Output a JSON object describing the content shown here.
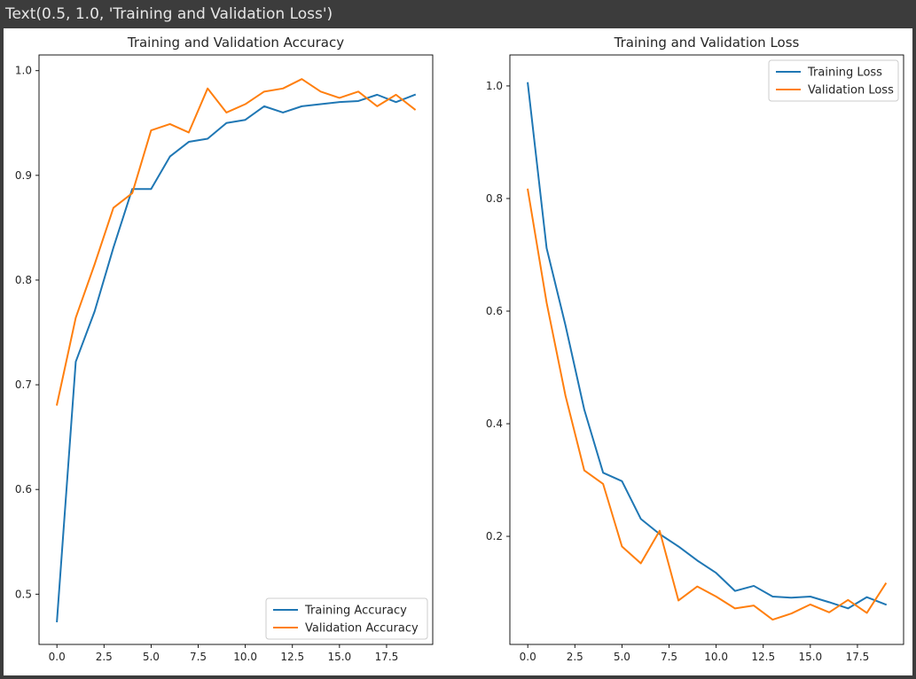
{
  "output_text": "Text(0.5, 1.0, 'Training and Validation Loss')",
  "colors": {
    "training": "#1f77b4",
    "validation": "#ff7f0e",
    "axis": "#000000"
  },
  "chart_data": [
    {
      "type": "line",
      "title": "Training and Validation Accuracy",
      "xlabel": "",
      "ylabel": "",
      "xlim": [
        -0.95,
        19.95
      ],
      "ylim": [
        0.452,
        1.015
      ],
      "xticks": [
        0.0,
        2.5,
        5.0,
        7.5,
        10.0,
        12.5,
        15.0,
        17.5
      ],
      "xtick_labels": [
        "0.0",
        "2.5",
        "5.0",
        "7.5",
        "10.0",
        "12.5",
        "15.0",
        "17.5"
      ],
      "yticks": [
        0.5,
        0.6,
        0.7,
        0.8,
        0.9,
        1.0
      ],
      "ytick_labels": [
        "0.5",
        "0.6",
        "0.7",
        "0.8",
        "0.9",
        "1.0"
      ],
      "legend_position": "lower right",
      "x": [
        0,
        1,
        2,
        3,
        4,
        5,
        6,
        7,
        8,
        9,
        10,
        11,
        12,
        13,
        14,
        15,
        16,
        17,
        18,
        19
      ],
      "series": [
        {
          "name": "Training Accuracy",
          "color": "#1f77b4",
          "values": [
            0.474,
            0.722,
            0.77,
            0.831,
            0.887,
            0.887,
            0.918,
            0.932,
            0.935,
            0.95,
            0.953,
            0.966,
            0.96,
            0.966,
            0.968,
            0.97,
            0.971,
            0.977,
            0.97,
            0.977
          ]
        },
        {
          "name": "Validation Accuracy",
          "color": "#ff7f0e",
          "values": [
            0.681,
            0.764,
            0.815,
            0.869,
            0.883,
            0.943,
            0.949,
            0.941,
            0.983,
            0.96,
            0.968,
            0.98,
            0.983,
            0.992,
            0.98,
            0.974,
            0.98,
            0.966,
            0.977,
            0.963
          ]
        }
      ]
    },
    {
      "type": "line",
      "title": "Training and Validation Loss",
      "xlabel": "",
      "ylabel": "",
      "xlim": [
        -0.95,
        19.95
      ],
      "ylim": [
        0.008,
        1.055
      ],
      "xticks": [
        0.0,
        2.5,
        5.0,
        7.5,
        10.0,
        12.5,
        15.0,
        17.5
      ],
      "xtick_labels": [
        "0.0",
        "2.5",
        "5.0",
        "7.5",
        "10.0",
        "12.5",
        "15.0",
        "17.5"
      ],
      "yticks": [
        0.2,
        0.4,
        0.6,
        0.8,
        1.0
      ],
      "ytick_labels": [
        "0.2",
        "0.4",
        "0.6",
        "0.8",
        "1.0"
      ],
      "legend_position": "upper right",
      "x": [
        0,
        1,
        2,
        3,
        4,
        5,
        6,
        7,
        8,
        9,
        10,
        11,
        12,
        13,
        14,
        15,
        16,
        17,
        18,
        19
      ],
      "series": [
        {
          "name": "Training Loss",
          "color": "#1f77b4",
          "values": [
            1.005,
            0.712,
            0.575,
            0.425,
            0.313,
            0.298,
            0.231,
            0.204,
            0.182,
            0.157,
            0.135,
            0.103,
            0.112,
            0.093,
            0.091,
            0.093,
            0.083,
            0.072,
            0.092,
            0.079
          ]
        },
        {
          "name": "Validation Loss",
          "color": "#ff7f0e",
          "values": [
            0.816,
            0.615,
            0.45,
            0.317,
            0.293,
            0.182,
            0.152,
            0.21,
            0.086,
            0.111,
            0.093,
            0.072,
            0.077,
            0.052,
            0.063,
            0.079,
            0.065,
            0.087,
            0.064,
            0.116
          ]
        }
      ]
    }
  ]
}
